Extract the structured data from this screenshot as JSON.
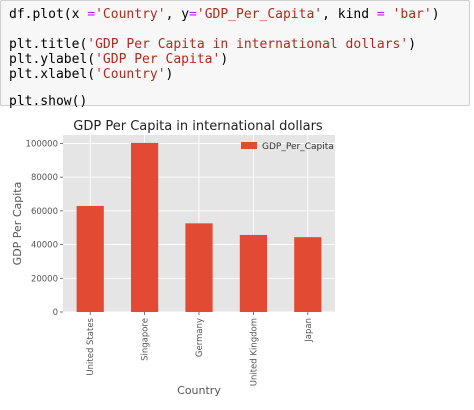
{
  "code": {
    "lines": [
      [
        {
          "t": "df.plot(x ",
          "c": "plain"
        },
        {
          "t": "=",
          "c": "op"
        },
        {
          "t": "'Country'",
          "c": "str"
        },
        {
          "t": ", y",
          "c": "plain"
        },
        {
          "t": "=",
          "c": "op"
        },
        {
          "t": "'GDP_Per_Capita'",
          "c": "str"
        },
        {
          "t": ", kind ",
          "c": "plain"
        },
        {
          "t": "=",
          "c": "op"
        },
        {
          "t": " ",
          "c": "plain"
        },
        {
          "t": "'bar'",
          "c": "str"
        },
        {
          "t": ")",
          "c": "plain"
        }
      ],
      [
        {
          "t": "plt.title(",
          "c": "plain"
        },
        {
          "t": "'GDP Per Capita in international dollars'",
          "c": "str"
        },
        {
          "t": ")",
          "c": "plain"
        }
      ],
      [
        {
          "t": "plt.ylabel(",
          "c": "plain"
        },
        {
          "t": "'GDP Per Capita'",
          "c": "str"
        },
        {
          "t": ")",
          "c": "plain"
        }
      ],
      [
        {
          "t": "plt.xlabel(",
          "c": "plain"
        },
        {
          "t": "'Country'",
          "c": "str"
        },
        {
          "t": ")",
          "c": "plain"
        }
      ],
      [
        {
          "t": "plt.show()",
          "c": "plain"
        }
      ]
    ]
  },
  "colors": {
    "bar": "#e24a33",
    "plot_bg": "#e5e5e5",
    "grid": "#ffffff",
    "tick_text": "#555555",
    "label_text": "#555555",
    "title_text": "#222222",
    "code_string": "#b02a1f",
    "code_operator": "#aa22ff"
  },
  "chart_data": {
    "type": "bar",
    "title": "GDP Per Capita in international dollars",
    "xlabel": "Country",
    "ylabel": "GDP Per Capita",
    "categories": [
      "United States",
      "Singapore",
      "Germany",
      "United Kingdom",
      "Japan"
    ],
    "series": [
      {
        "name": "GDP_Per_Capita",
        "values": [
          62900,
          100300,
          52600,
          45700,
          44400
        ]
      }
    ],
    "ylim": [
      0,
      105000
    ],
    "yticks": [
      0,
      20000,
      40000,
      60000,
      80000,
      100000
    ],
    "ytick_labels": [
      "0",
      "20000",
      "40000",
      "60000",
      "80000",
      "100000"
    ],
    "grid": true,
    "legend_position": "upper right"
  }
}
